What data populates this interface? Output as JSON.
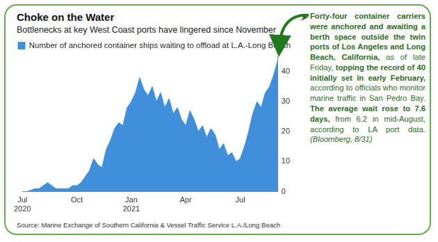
{
  "chart_data": {
    "type": "area",
    "title": "Choke on the Water",
    "subtitle": "Bottlenecks at key West Coast ports have lingered since November",
    "source": "Source: Marine Exchange of Southern California & Vessel Traffic Service L.A./Long Beach",
    "annotation": [
      {
        "text": "Forty-four container carriers were anchored and awaiting a berth space outside the twin ports of Los Angeles and Long Beach, California,",
        "bold": true,
        "italic": false
      },
      {
        "text": " as of late Friday, ",
        "bold": false,
        "italic": false
      },
      {
        "text": "topping the record of 40 initially set in early February,",
        "bold": true,
        "italic": false
      },
      {
        "text": " according to officials who monitor marine traffic in San Pedro Bay. ",
        "bold": false,
        "italic": false
      },
      {
        "text": "The average wait rose to 7.6 days,",
        "bold": true,
        "italic": false
      },
      {
        "text": " from 6.2 in mid-August, according to LA port data. ",
        "bold": false,
        "italic": false
      },
      {
        "text": "(Bloomberg, 8/31)",
        "bold": false,
        "italic": true
      }
    ],
    "categories": [
      "Jul 2020",
      null,
      null,
      null,
      null,
      null,
      null,
      null,
      null,
      null,
      null,
      null,
      null,
      "Oct",
      null,
      null,
      null,
      null,
      null,
      null,
      null,
      null,
      null,
      null,
      null,
      null,
      "Jan 2021",
      null,
      null,
      null,
      null,
      null,
      null,
      null,
      null,
      null,
      null,
      null,
      null,
      "Apr",
      null,
      null,
      null,
      null,
      null,
      null,
      null,
      null,
      null,
      null,
      null,
      null,
      "Jul",
      null,
      null,
      null,
      null,
      null,
      null,
      null,
      null,
      null
    ],
    "series": [
      {
        "name": "Number of anchored container ships waiting to offload at L.A.-Long Beach",
        "color": "#3f8fdb",
        "values": [
          0,
          0,
          0.5,
          1,
          1,
          2,
          3,
          2,
          1,
          1,
          1,
          1,
          2,
          2,
          3,
          5,
          7,
          11,
          9,
          8,
          14,
          17,
          21,
          23,
          22,
          28,
          30,
          33,
          38,
          34,
          32,
          35,
          30,
          33,
          28,
          31,
          26,
          28,
          24,
          22,
          27,
          24,
          20,
          22,
          18,
          21,
          19,
          14,
          16,
          12,
          13,
          10,
          11,
          15,
          20,
          26,
          30,
          28,
          33,
          35,
          39,
          44
        ]
      }
    ],
    "ylim": [
      0,
      45
    ],
    "yticks": [
      0,
      10,
      20,
      30,
      40
    ],
    "grid": false,
    "legend": "top-left"
  }
}
